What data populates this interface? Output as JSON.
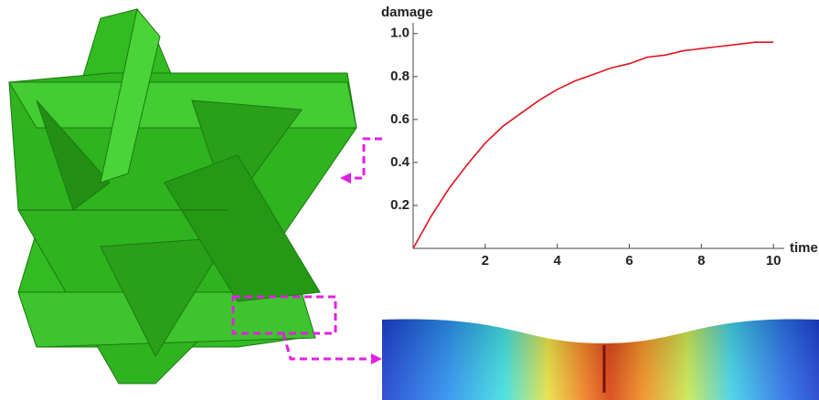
{
  "chart_data": {
    "type": "line",
    "x_label": "time",
    "y_label": "damage",
    "x": [
      0,
      0.5,
      1,
      1.5,
      2,
      2.5,
      3,
      3.5,
      4,
      4.5,
      5,
      5.5,
      6,
      6.5,
      7,
      7.5,
      8,
      8.5,
      9,
      9.5,
      10
    ],
    "series": [
      {
        "name": "damage",
        "color": "#e0141e",
        "values": [
          0,
          0.15,
          0.28,
          0.39,
          0.49,
          0.57,
          0.63,
          0.69,
          0.74,
          0.78,
          0.81,
          0.84,
          0.86,
          0.89,
          0.9,
          0.92,
          0.93,
          0.94,
          0.95,
          0.96,
          0.96
        ]
      }
    ],
    "xlim": [
      0,
      10.3
    ],
    "ylim": [
      0,
      1.05
    ],
    "xticks": [
      2,
      4,
      6,
      8,
      10
    ],
    "yticks": [
      0.2,
      0.4,
      0.6,
      0.8,
      {
        "value": 1,
        "label": "1.0"
      }
    ]
  }
}
